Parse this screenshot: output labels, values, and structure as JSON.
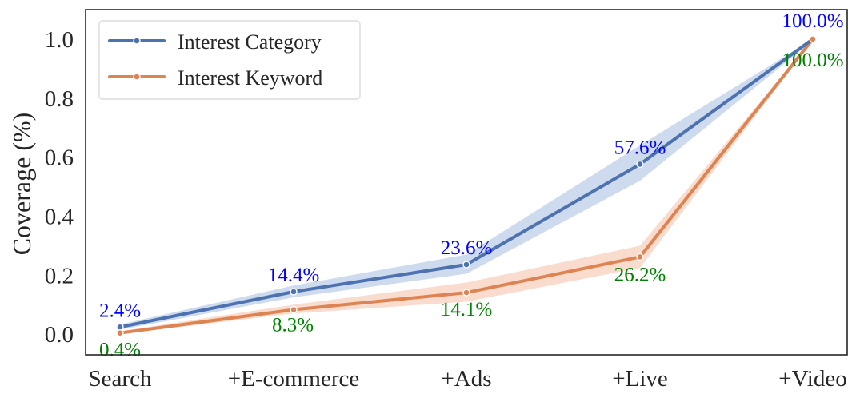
{
  "chart_data": {
    "type": "line",
    "title": "",
    "xlabel": "",
    "ylabel": "Coverage (%)",
    "categories": [
      "Search",
      "+E-commerce",
      "+Ads",
      "+Live",
      "+Video"
    ],
    "ylim": [
      -0.07,
      1.1
    ],
    "yticks": [
      "0.0",
      "0.2",
      "0.4",
      "0.6",
      "0.8",
      "1.0"
    ],
    "legend_position": "top-left",
    "series": [
      {
        "name": "Interest Category",
        "color": "#4c72b0",
        "band_color": "#c6d3ea",
        "values": [
          0.024,
          0.144,
          0.236,
          0.576,
          1.0
        ],
        "band_low": [
          0.015,
          0.125,
          0.205,
          0.52,
          0.995
        ],
        "band_high": [
          0.033,
          0.165,
          0.27,
          0.64,
          1.0
        ],
        "labels": [
          "2.4%",
          "14.4%",
          "23.6%",
          "57.6%",
          "100.0%"
        ],
        "label_color": "#0000ff"
      },
      {
        "name": "Interest Keyword",
        "color": "#dd8452",
        "band_color": "#f8d6c4",
        "values": [
          0.004,
          0.083,
          0.141,
          0.262,
          1.0
        ],
        "band_low": [
          0.0,
          0.07,
          0.11,
          0.225,
          0.995
        ],
        "band_high": [
          0.01,
          0.1,
          0.175,
          0.3,
          1.0
        ],
        "labels": [
          "0.4%",
          "8.3%",
          "14.1%",
          "26.2%",
          "100.0%"
        ],
        "label_color": "#008000"
      }
    ]
  }
}
